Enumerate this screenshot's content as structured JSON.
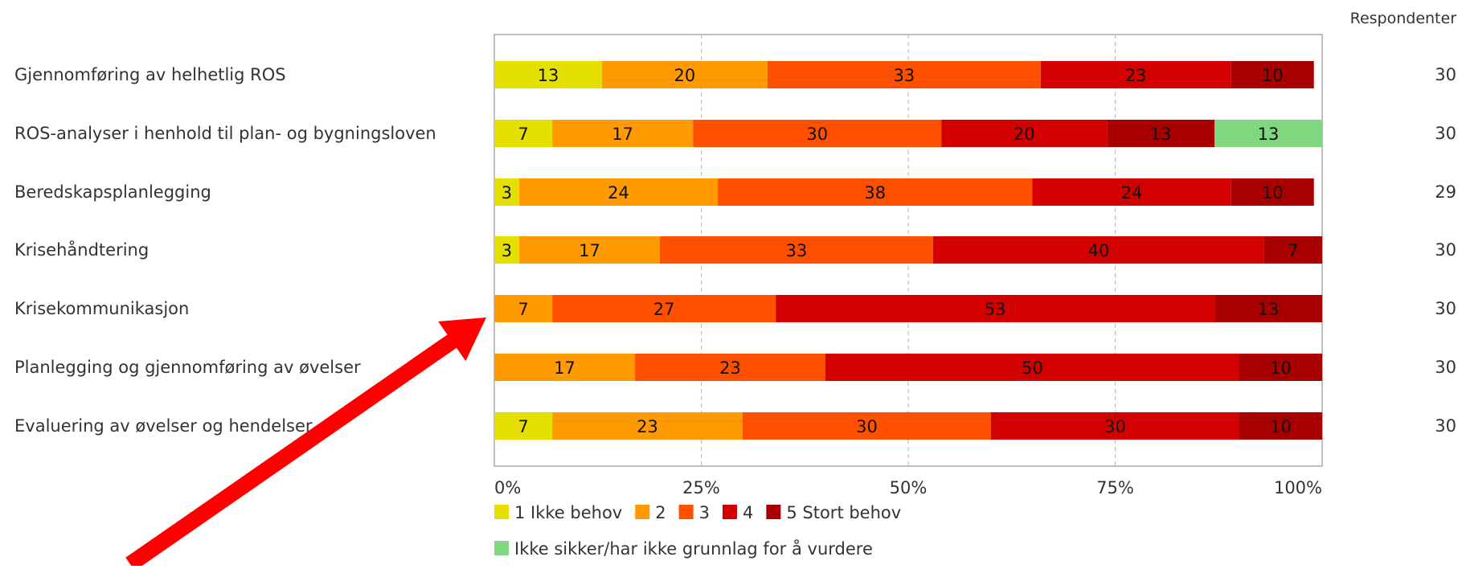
{
  "chart_data": {
    "type": "bar",
    "orientation": "horizontal",
    "stacked": "percent",
    "respondents_header": "Respondenter",
    "categories": [
      "Gjennomføring av helhetlig ROS",
      "ROS-analyser i henhold til plan- og bygningsloven",
      "Beredskapsplanlegging",
      "Krisehåndtering",
      "Krisekommunikasjon",
      "Planlegging og gjennomføring av øvelser",
      "Evaluering av øvelser og hendelser"
    ],
    "respondents": [
      30,
      30,
      29,
      30,
      30,
      30,
      30
    ],
    "series": [
      {
        "name": "1 Ikke behov",
        "color": "#e6e000",
        "values": [
          13,
          7,
          3,
          3,
          0,
          0,
          7
        ]
      },
      {
        "name": "2",
        "color": "#ff9a00",
        "values": [
          20,
          17,
          24,
          17,
          7,
          17,
          23
        ]
      },
      {
        "name": "3",
        "color": "#ff5000",
        "values": [
          33,
          30,
          38,
          33,
          27,
          23,
          30
        ]
      },
      {
        "name": "4",
        "color": "#d20000",
        "values": [
          23,
          20,
          24,
          40,
          53,
          50,
          30
        ]
      },
      {
        "name": "5 Stort behov",
        "color": "#a80000",
        "values": [
          10,
          13,
          10,
          7,
          13,
          10,
          10
        ]
      },
      {
        "name": "Ikke sikker/har ikke grunnlag for å vurdere",
        "color": "#7fd77f",
        "values": [
          0,
          13,
          0,
          0,
          0,
          0,
          0
        ]
      }
    ],
    "x_ticks": [
      "0%",
      "25%",
      "50%",
      "75%",
      "100%"
    ],
    "xlim": [
      0,
      100
    ],
    "grid": true,
    "legend_position": "bottom",
    "annotation": {
      "type": "arrow",
      "color": "#ff0000",
      "points_to": "Krisekommunikasjon"
    }
  }
}
